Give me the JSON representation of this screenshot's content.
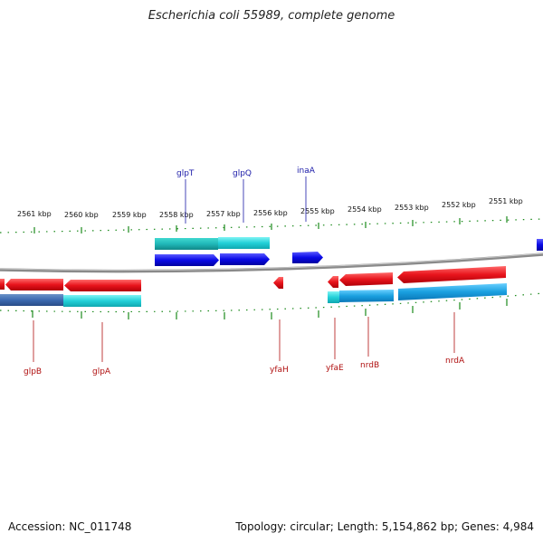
{
  "title": "Escherichia coli 55989, complete genome",
  "footer": {
    "accession": "Accession: NC_011748",
    "summary": "Topology: circular; Length: 5,154,862 bp; Genes: 4,984"
  },
  "ruler": [
    "2561 kbp",
    "2560 kbp",
    "2559 kbp",
    "2558 kbp",
    "2557 kbp",
    "2556 kbp",
    "2555 kbp",
    "2554 kbp",
    "2553 kbp",
    "2552 kbp",
    "2551 kbp"
  ],
  "genes_top": [
    "glpT",
    "glpQ",
    "inaA"
  ],
  "genes_bottom": [
    "glpB",
    "glpA",
    "yfaH",
    "yfaE",
    "nrdB",
    "nrdA"
  ],
  "colors": {
    "forward_gene": "#0a0ae6",
    "forward_cds": "#22d0d8",
    "reverse_gene": "#e8141c",
    "reverse_cds": "#1aa0e0",
    "tick": "#1c8a1c",
    "backbone": "#8a8a8a"
  }
}
